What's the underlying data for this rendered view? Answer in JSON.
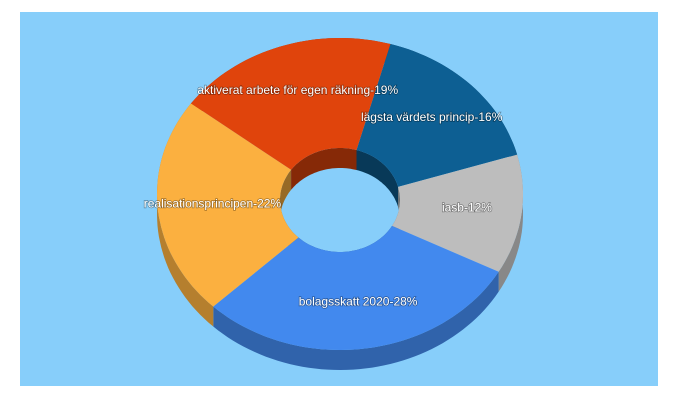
{
  "chart_data": {
    "type": "donut3d",
    "categories": [
      "lägsta värdets princip-16%",
      "iasb-12%",
      "bolagsskatt 2020-28%",
      "realisationsprincipen-22%",
      "aktiverat arbete för egen räkning-19%"
    ],
    "values": [
      16,
      12,
      28,
      22,
      19
    ],
    "colors": [
      "#0d5f93",
      "#bdbdbd",
      "#4289ee",
      "#fbb040",
      "#e0440c"
    ]
  }
}
